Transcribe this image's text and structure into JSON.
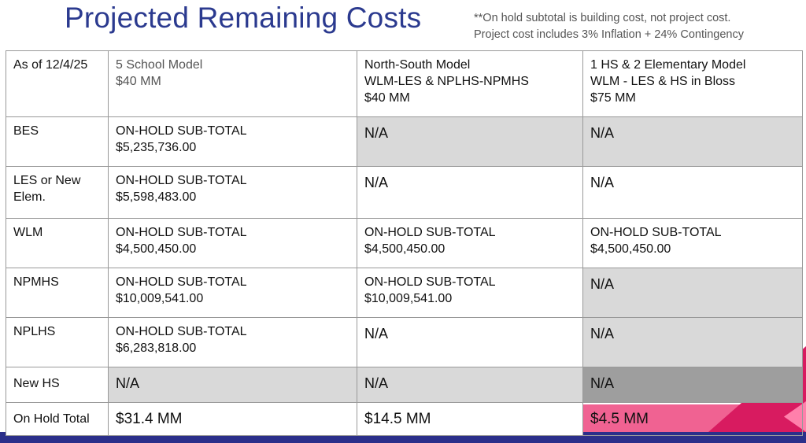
{
  "header": {
    "title": "Projected Remaining Costs",
    "note_line1": "**On hold subtotal is building cost, not project cost.",
    "note_line2": "Project cost includes 3% Inflation + 24% Contingency"
  },
  "table": {
    "corner": "As of 12/4/25",
    "columns": [
      {
        "line1": "5 School Model",
        "line2": "$40 MM",
        "line3": ""
      },
      {
        "line1": "North-South Model",
        "line2": "WLM-LES & NPLHS-NPMHS",
        "line3": "$40 MM"
      },
      {
        "line1": "1 HS & 2 Elementary Model",
        "line2": "WLM - LES & HS in Bloss",
        "line3": "$75 MM"
      }
    ],
    "rows": [
      {
        "label": "BES",
        "cells": [
          {
            "line1": "ON-HOLD SUB-TOTAL",
            "line2": "$5,235,736.00"
          },
          {
            "line1": "N/A",
            "line2": ""
          },
          {
            "line1": "N/A",
            "line2": ""
          }
        ]
      },
      {
        "label": "LES or New Elem.",
        "cells": [
          {
            "line1": "ON-HOLD SUB-TOTAL",
            "line2": "$5,598,483.00"
          },
          {
            "line1": "N/A",
            "line2": ""
          },
          {
            "line1": "N/A",
            "line2": ""
          }
        ]
      },
      {
        "label": "WLM",
        "cells": [
          {
            "line1": "ON-HOLD SUB-TOTAL",
            "line2": "$4,500,450.00"
          },
          {
            "line1": "ON-HOLD SUB-TOTAL",
            "line2": "$4,500,450.00"
          },
          {
            "line1": "ON-HOLD SUB-TOTAL",
            "line2": "$4,500,450.00"
          }
        ]
      },
      {
        "label": "NPMHS",
        "cells": [
          {
            "line1": "ON-HOLD SUB-TOTAL",
            "line2": "$10,009,541.00"
          },
          {
            "line1": "ON-HOLD SUB-TOTAL",
            "line2": "$10,009,541.00"
          },
          {
            "line1": "N/A",
            "line2": ""
          }
        ]
      },
      {
        "label": "NPLHS",
        "cells": [
          {
            "line1": "ON-HOLD SUB-TOTAL",
            "line2": "$6,283,818.00"
          },
          {
            "line1": "N/A",
            "line2": ""
          },
          {
            "line1": "N/A",
            "line2": ""
          }
        ]
      },
      {
        "label": "New HS",
        "cells": [
          {
            "line1": "N/A",
            "line2": ""
          },
          {
            "line1": "N/A",
            "line2": ""
          },
          {
            "line1": "N/A",
            "line2": ""
          }
        ]
      }
    ],
    "total": {
      "label": "On Hold Total",
      "values": [
        "$31.4 MM",
        "$14.5 MM",
        "$4.5 MM"
      ]
    }
  },
  "colors": {
    "title": "#2b3a8f",
    "na_fill": "#d9d9d9",
    "na_fill_dark": "#9e9e9e",
    "accent_pink": "#f06292",
    "accent_magenta": "#d81b60",
    "footer_band": "#2b2f8a"
  }
}
